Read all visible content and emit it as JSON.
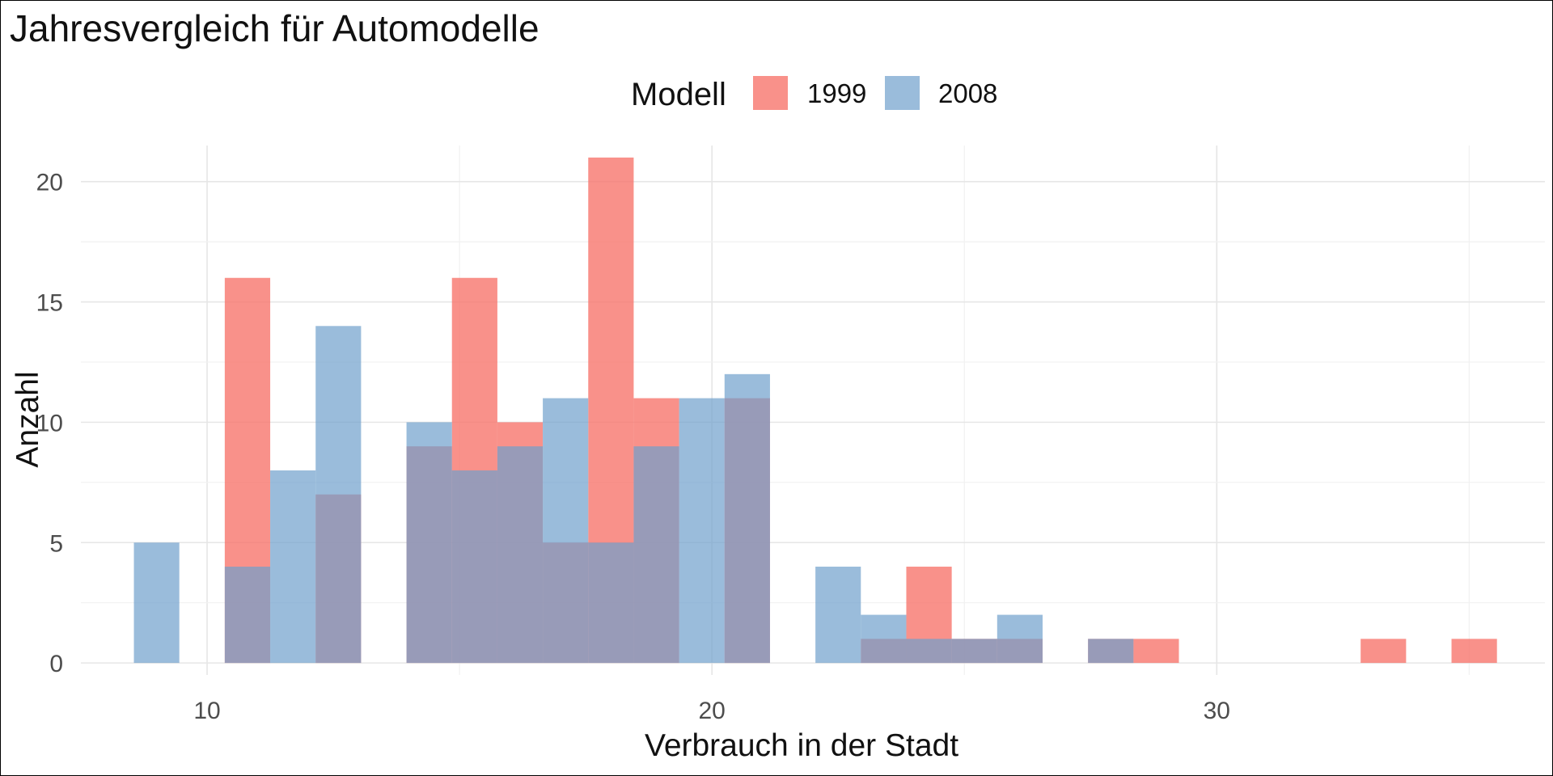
{
  "chart_data": {
    "type": "bar",
    "title": "Jahresvergleich für Automodelle",
    "xlabel": "Verbrauch in der Stadt",
    "ylabel": "Anzahl",
    "xlim": [
      7.5,
      36.5
    ],
    "ylim": [
      -0.5,
      21.5
    ],
    "x_ticks": [
      10,
      20,
      30
    ],
    "y_ticks": [
      0,
      5,
      10,
      15,
      20
    ],
    "grid": true,
    "legend": {
      "title": "Modell",
      "position": "top"
    },
    "bin_width": 0.9,
    "bins": [
      9.0,
      9.9,
      10.8,
      11.7,
      12.6,
      13.5,
      14.4,
      15.3,
      16.2,
      17.1,
      18.0,
      18.9,
      19.8,
      20.7,
      21.6,
      22.5,
      23.4,
      24.3,
      25.2,
      26.1,
      27.0,
      27.9,
      28.8,
      29.7,
      30.6,
      31.5,
      32.4,
      33.3,
      34.2,
      35.1
    ],
    "series": [
      {
        "name": "1999",
        "color": "#F8766D",
        "values": [
          0,
          0,
          16,
          0,
          7,
          0,
          9,
          16,
          10,
          5,
          21,
          11,
          0,
          11,
          0,
          0,
          1,
          4,
          1,
          1,
          0,
          1,
          1,
          0,
          0,
          0,
          0,
          1,
          0,
          1
        ]
      },
      {
        "name": "2008",
        "color": "#6FA0CC",
        "values": [
          5,
          0,
          4,
          8,
          14,
          0,
          10,
          8,
          9,
          11,
          5,
          9,
          11,
          12,
          0,
          4,
          2,
          1,
          1,
          2,
          0,
          1,
          0,
          0,
          0,
          0,
          0,
          0,
          0,
          0
        ]
      }
    ]
  }
}
